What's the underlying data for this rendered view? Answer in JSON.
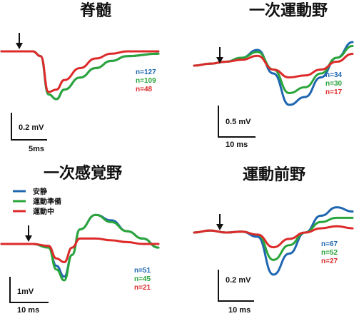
{
  "colors": {
    "rest": "#1f66b0",
    "prep": "#2aa53a",
    "move": "#dd2a2a"
  },
  "legend": [
    {
      "key": "rest",
      "label": "安静"
    },
    {
      "key": "prep",
      "label": "運動準備"
    },
    {
      "key": "move",
      "label": "運動中"
    }
  ],
  "chart_data": [
    {
      "type": "line",
      "title": "脊髄",
      "x": [
        0,
        0.1,
        0.2,
        0.25,
        0.3,
        0.35,
        0.4,
        0.5,
        0.6,
        0.7,
        0.8,
        1.0
      ],
      "series": [
        {
          "key": "rest",
          "values": [
            0,
            0,
            0,
            -0.1,
            -0.9,
            -1.0,
            -0.8,
            -0.55,
            -0.35,
            -0.2,
            -0.1,
            -0.05
          ]
        },
        {
          "key": "prep",
          "values": [
            0,
            0,
            0,
            -0.1,
            -0.9,
            -1.0,
            -0.8,
            -0.55,
            -0.35,
            -0.2,
            -0.1,
            -0.05
          ]
        },
        {
          "key": "move",
          "values": [
            0,
            0,
            0,
            -0.1,
            -0.85,
            -0.8,
            -0.6,
            -0.35,
            -0.15,
            -0.05,
            0,
            0
          ]
        }
      ],
      "n_labels": [
        {
          "key": "rest",
          "text": "n=127"
        },
        {
          "key": "prep",
          "text": "n=109"
        },
        {
          "key": "move",
          "text": "n=48"
        }
      ],
      "scale_y": "0.2 mV",
      "scale_x": "5ms"
    },
    {
      "type": "line",
      "title": "一次運動野",
      "x": [
        0,
        0.1,
        0.2,
        0.3,
        0.4,
        0.5,
        0.6,
        0.7,
        0.8,
        0.9,
        1.0
      ],
      "series": [
        {
          "key": "rest",
          "values": [
            0,
            0.05,
            0.1,
            0.2,
            0.4,
            -0.2,
            -1.0,
            -0.8,
            -0.3,
            0.2,
            0.6
          ]
        },
        {
          "key": "prep",
          "values": [
            0,
            0.05,
            0.1,
            0.2,
            0.35,
            -0.1,
            -0.7,
            -0.55,
            -0.2,
            0.2,
            0.5
          ]
        },
        {
          "key": "move",
          "values": [
            0,
            0.05,
            0.1,
            0.15,
            0.25,
            -0.1,
            -0.3,
            -0.25,
            -0.1,
            0.1,
            0.3
          ]
        }
      ],
      "n_labels": [
        {
          "key": "rest",
          "text": "n=34"
        },
        {
          "key": "prep",
          "text": "n=30"
        },
        {
          "key": "move",
          "text": "n=17"
        }
      ],
      "scale_y": "0.5 mV",
      "scale_x": "10 ms"
    },
    {
      "type": "line",
      "title": "一次感覚野",
      "x": [
        0,
        0.1,
        0.2,
        0.3,
        0.35,
        0.4,
        0.45,
        0.5,
        0.6,
        0.7,
        0.8,
        0.9,
        1.0
      ],
      "series": [
        {
          "key": "rest",
          "values": [
            0,
            0,
            0,
            -0.1,
            -0.6,
            -0.9,
            -0.3,
            0.4,
            0.8,
            0.65,
            0.35,
            0.15,
            -0.1
          ]
        },
        {
          "key": "prep",
          "values": [
            0,
            0,
            0,
            -0.1,
            -0.7,
            -1.0,
            -0.3,
            0.4,
            0.8,
            0.6,
            0.35,
            0.15,
            -0.1
          ]
        },
        {
          "key": "move",
          "values": [
            0,
            0,
            0,
            -0.05,
            -0.4,
            -0.5,
            -0.1,
            0.15,
            0.15,
            0.1,
            0.05,
            0,
            0
          ]
        }
      ],
      "n_labels": [
        {
          "key": "rest",
          "text": "n=51"
        },
        {
          "key": "prep",
          "text": "n=45"
        },
        {
          "key": "move",
          "text": "n=21"
        }
      ],
      "scale_y": "1mV",
      "scale_x": "10 ms"
    },
    {
      "type": "line",
      "title": "運動前野",
      "x": [
        0,
        0.1,
        0.2,
        0.3,
        0.4,
        0.5,
        0.6,
        0.7,
        0.8,
        0.9,
        1.0
      ],
      "series": [
        {
          "key": "rest",
          "values": [
            0,
            0.05,
            0,
            0.02,
            -0.1,
            -1.0,
            -0.5,
            0.0,
            0.4,
            0.6,
            0.5
          ]
        },
        {
          "key": "prep",
          "values": [
            0,
            0.05,
            0,
            0.02,
            -0.05,
            -0.65,
            -0.3,
            0.0,
            0.25,
            0.35,
            0.35
          ]
        },
        {
          "key": "move",
          "values": [
            0,
            0.05,
            0,
            0.02,
            -0.05,
            -0.35,
            -0.15,
            0.0,
            0.1,
            0.15,
            0.1
          ]
        }
      ],
      "n_labels": [
        {
          "key": "rest",
          "text": "n=67"
        },
        {
          "key": "prep",
          "text": "n=52"
        },
        {
          "key": "move",
          "text": "n=27"
        }
      ],
      "scale_y": "0.2 mV",
      "scale_x": "10 ms"
    }
  ]
}
